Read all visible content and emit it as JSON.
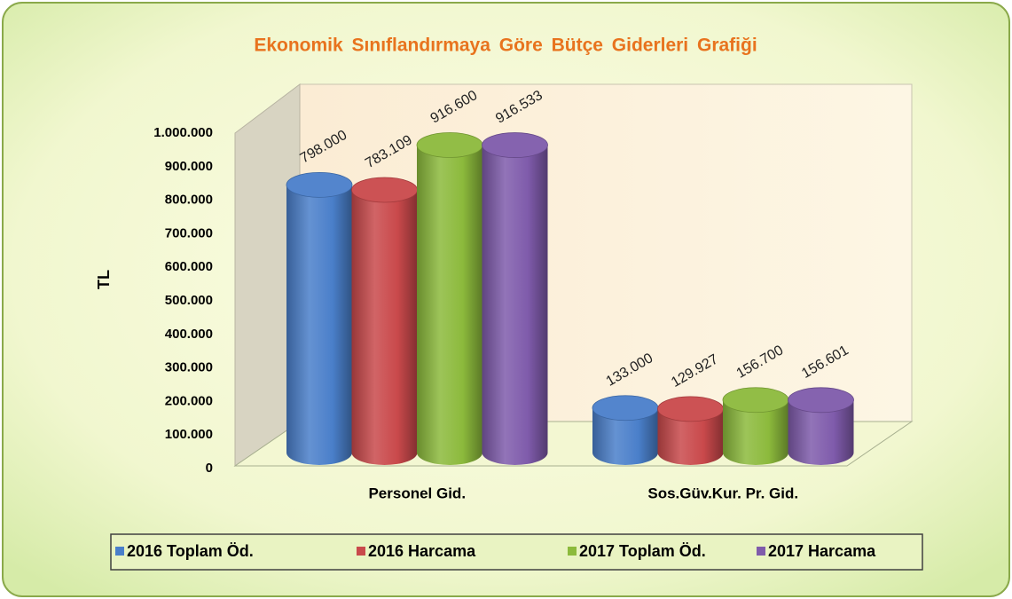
{
  "chart_data": {
    "type": "bar3d",
    "title": "Ekonomik Sınıflandırmaya Göre Bütçe Giderleri Grafiği",
    "y_label": "TL",
    "categories": [
      "Personel Gid.",
      "Sos.Güv.Kur. Pr. Gid."
    ],
    "series": [
      {
        "name": "2016 Toplam Öd.",
        "color": "#4a7fca",
        "values": [
          798000,
          133000
        ],
        "value_labels": [
          "798.000",
          "133.000"
        ]
      },
      {
        "name": "2016 Harcama",
        "color": "#c9494b",
        "values": [
          783109,
          129927
        ],
        "value_labels": [
          "783.109",
          "129.927"
        ]
      },
      {
        "name": "2017 Toplam Öd.",
        "color": "#8cba3c",
        "values": [
          916600,
          156700
        ],
        "value_labels": [
          "916.600",
          "156.700"
        ]
      },
      {
        "name": "2017 Harcama",
        "color": "#7f5bab",
        "values": [
          916533,
          156601
        ],
        "value_labels": [
          "916.533",
          "156.601"
        ]
      }
    ],
    "ylim": [
      0,
      1000000
    ],
    "yticks": [
      0,
      {
        "value": 100000,
        "label": "100.000"
      },
      {
        "value": 200000,
        "label": "200.000"
      },
      {
        "value": 300000,
        "label": "300.000"
      },
      {
        "value": 400000,
        "label": "400.000"
      },
      {
        "value": 500000,
        "label": "500.000"
      },
      {
        "value": 600000,
        "label": "600.000"
      },
      {
        "value": 700000,
        "label": "700.000"
      },
      {
        "value": 800000,
        "label": "800.000"
      },
      {
        "value": 900000,
        "label": "900.000"
      },
      {
        "value": 1000000,
        "label": "1.000.000"
      }
    ],
    "grid": false,
    "legend": "bottom"
  }
}
